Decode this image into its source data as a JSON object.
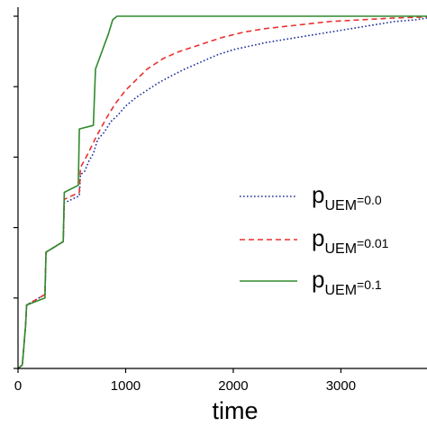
{
  "chart_data": {
    "type": "line",
    "xlabel": "time",
    "ylabel": "",
    "xlim": [
      0,
      3800
    ],
    "ylim": [
      0,
      1
    ],
    "xticks": [
      0,
      1000,
      2000,
      3000
    ],
    "xtick_labels": [
      "0",
      "1000",
      "2000",
      "3000"
    ],
    "legend_position": "right-middle",
    "grid": false,
    "series": [
      {
        "name_base": "p",
        "name_sub": "UEM",
        "name_suffix": "=0.0",
        "color": "#1f2f9c",
        "line_style": "dotted",
        "x": [
          0,
          40,
          70,
          80,
          250,
          260,
          420,
          430,
          570,
          580,
          620,
          660,
          700,
          740,
          800,
          860,
          930,
          1000,
          1100,
          1200,
          1300,
          1420,
          1550,
          1700,
          1850,
          2000,
          2150,
          2300,
          2500,
          2700,
          2900,
          3100,
          3300,
          3500,
          3700,
          3800
        ],
        "y": [
          0.0,
          0.01,
          0.12,
          0.18,
          0.21,
          0.33,
          0.36,
          0.47,
          0.49,
          0.55,
          0.56,
          0.59,
          0.61,
          0.65,
          0.67,
          0.7,
          0.72,
          0.745,
          0.77,
          0.79,
          0.81,
          0.83,
          0.85,
          0.87,
          0.89,
          0.905,
          0.915,
          0.925,
          0.935,
          0.945,
          0.955,
          0.965,
          0.975,
          0.985,
          0.99,
          0.995
        ]
      },
      {
        "name_base": "p",
        "name_sub": "UEM",
        "name_suffix": "=0.01",
        "color": "#e8312f",
        "line_style": "dashed",
        "x": [
          0,
          40,
          70,
          80,
          250,
          260,
          420,
          430,
          570,
          580,
          650,
          730,
          820,
          900,
          1000,
          1100,
          1200,
          1350,
          1500,
          1700,
          1900,
          2100,
          2300,
          2600,
          2900,
          3200,
          3500,
          3800
        ],
        "y": [
          0.0,
          0.01,
          0.12,
          0.18,
          0.21,
          0.33,
          0.36,
          0.48,
          0.5,
          0.57,
          0.61,
          0.66,
          0.71,
          0.75,
          0.79,
          0.82,
          0.85,
          0.88,
          0.9,
          0.92,
          0.94,
          0.955,
          0.965,
          0.975,
          0.985,
          0.99,
          0.995,
          0.998
        ]
      },
      {
        "name_base": "p",
        "name_sub": "UEM",
        "name_suffix": "=0.1",
        "color": "#2e8b2e",
        "line_style": "solid",
        "x": [
          0,
          40,
          70,
          80,
          250,
          260,
          420,
          430,
          560,
          570,
          700,
          720,
          840,
          880,
          920,
          1000,
          3800
        ],
        "y": [
          0.0,
          0.01,
          0.12,
          0.18,
          0.2,
          0.33,
          0.36,
          0.5,
          0.52,
          0.68,
          0.69,
          0.85,
          0.95,
          0.99,
          1.0,
          1.0,
          1.0
        ]
      }
    ]
  }
}
